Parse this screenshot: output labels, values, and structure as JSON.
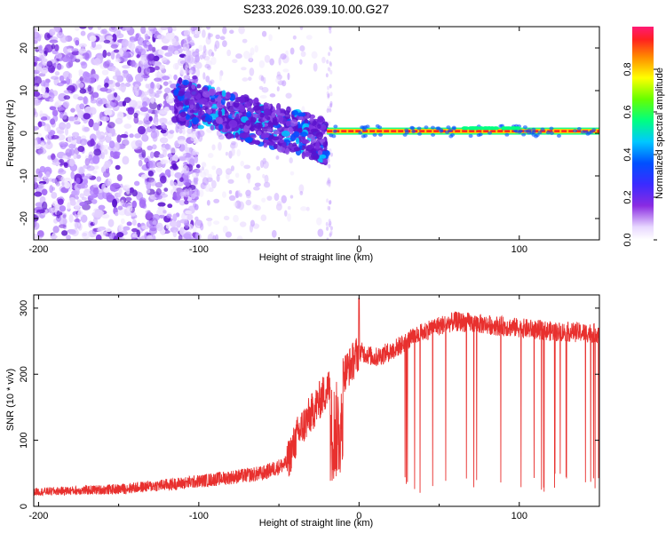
{
  "chart_data": [
    {
      "type": "heatmap",
      "title": "S233.2026.039.10.00.G27",
      "xlabel": "Height of straight line (km)",
      "ylabel": "Frequency (Hz)",
      "xlim": [
        -203,
        150
      ],
      "ylim": [
        -25,
        25
      ],
      "xticks": [
        -200,
        -100,
        0,
        100
      ],
      "xtick_labels": [
        "-200",
        "-100",
        "0",
        "100"
      ],
      "yticks": [
        -20,
        -10,
        0,
        10,
        20
      ],
      "ytick_labels": [
        "-20",
        "-10",
        "0",
        "10",
        "20"
      ],
      "colorbar": {
        "label": "Normalized spectral amplitude",
        "range": [
          0.0,
          1.0
        ],
        "ticks": [
          0.0,
          0.2,
          0.4,
          0.6,
          0.8
        ],
        "tick_labels": [
          "0.0",
          "0.2",
          "0.4",
          "0.6",
          "0.8"
        ]
      },
      "features": [
        {
          "region": "scattered low-amplitude noise",
          "x_range": [
            -203,
            -110
          ],
          "freq_range": [
            -25,
            25
          ],
          "amplitude": 0.1
        },
        {
          "region": "descending signal band",
          "x_range": [
            -115,
            -20
          ],
          "freq_start": 8,
          "freq_end": -2,
          "amplitude": 0.3
        },
        {
          "region": "stable carrier line",
          "x_range": [
            -20,
            150
          ],
          "freq": 0.5,
          "amplitude": 0.9
        }
      ]
    },
    {
      "type": "line",
      "title": "",
      "xlabel": "Height of straight line (km)",
      "ylabel": "SNR (10 * v/v)",
      "xlim": [
        -203,
        150
      ],
      "ylim": [
        0,
        320
      ],
      "xticks": [
        -200,
        -100,
        0,
        100
      ],
      "xtick_labels": [
        "-200",
        "-100",
        "0",
        "100"
      ],
      "yticks": [
        0,
        100,
        200,
        300
      ],
      "ytick_labels": [
        "0",
        "100",
        "200",
        "300"
      ],
      "series": [
        {
          "name": "SNR",
          "color": "#e8302e",
          "trend": {
            "x": [
              -203,
              -150,
              -110,
              -60,
              -45,
              -38,
              -30,
              -22,
              -15,
              -10,
              -5,
              0,
              10,
              20,
              30,
              45,
              60,
              80,
              100,
              120,
              150
            ],
            "y": [
              22,
              26,
              35,
              50,
              65,
              110,
              140,
              170,
              190,
              200,
              215,
              235,
              225,
              235,
              250,
              270,
              280,
              275,
              270,
              265,
              262
            ]
          },
          "spike_x": 0,
          "spike_y": 315,
          "dropouts_x_range": [
            20,
            150
          ],
          "dropout_min": 20
        }
      ]
    }
  ]
}
